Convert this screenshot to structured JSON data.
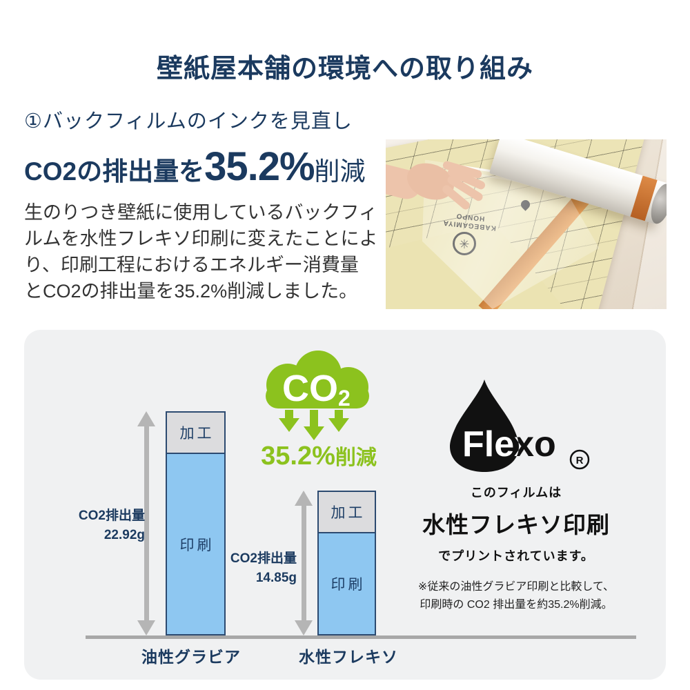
{
  "header": {
    "title": "壁紙屋本舗の環境への取り組み"
  },
  "intro": {
    "section_heading": "①バックフィルムのインクを見直し",
    "highlight_prefix": "CO2の排出量を",
    "highlight_value": "35.2%",
    "highlight_suffix": "削減",
    "body_lines": [
      "生のりつき壁紙に使用しているバックフィ",
      "ルムを水性フレキソ印刷に変えたことによ",
      "り、印刷工程におけるエネルギー消費量",
      "とCO2の排出量を35.2%削減しました。"
    ]
  },
  "photo": {
    "film_brand_line1": "KABEGAMIYA",
    "film_brand_line2": "HONPO",
    "seal_glyph": "✳"
  },
  "chart": {
    "seg_label_kako": "加工",
    "seg_label_insatsu": "印刷",
    "bars": [
      {
        "category": "油性グラビア",
        "value_label_line1": "CO2排出量",
        "value_label_line2": "22.92g"
      },
      {
        "category": "水性フレキソ",
        "value_label_line1": "CO2排出量",
        "value_label_line2": "14.85g"
      }
    ]
  },
  "chart_data": {
    "type": "bar",
    "stacked": true,
    "categories": [
      "油性グラビア",
      "水性フレキソ"
    ],
    "series": [
      {
        "name": "加工",
        "values": [
          4.24,
          4.24
        ],
        "color": "#dcdcde"
      },
      {
        "name": "印刷",
        "values": [
          18.68,
          10.61
        ],
        "color": "#8ec7f1"
      }
    ],
    "totals_g": [
      22.92,
      14.85
    ],
    "total_labels": [
      "CO2排出量 22.92g",
      "CO2排出量 14.85g"
    ],
    "unit": "g",
    "annotation": "35.2%削減",
    "legend_position": "none",
    "grid": false
  },
  "infographic": {
    "cloud_text": "CO",
    "cloud_sub": "2",
    "reduction_value": "35.2%",
    "reduction_suffix": "削減",
    "flexo_logo": "Flexo",
    "flexo_registered": "R",
    "statement_line1": "このフィルムは",
    "statement_line2": "水性フレキソ印刷",
    "statement_line3": "でプリントされています。",
    "note_line1": "※従来の油性グラビア印刷と比較して、",
    "note_line2": "印刷時の CO2 排出量を約35.2%削減。"
  },
  "colors": {
    "navy": "#1b3a5f",
    "green": "#8cc21e",
    "bar_blue": "#8ec7f1",
    "bar_gray": "#dcdcde",
    "arrow_gray": "#b5b5b5",
    "baseline_gray": "#a8a8a8",
    "panel_bg": "#f0f1f2"
  }
}
